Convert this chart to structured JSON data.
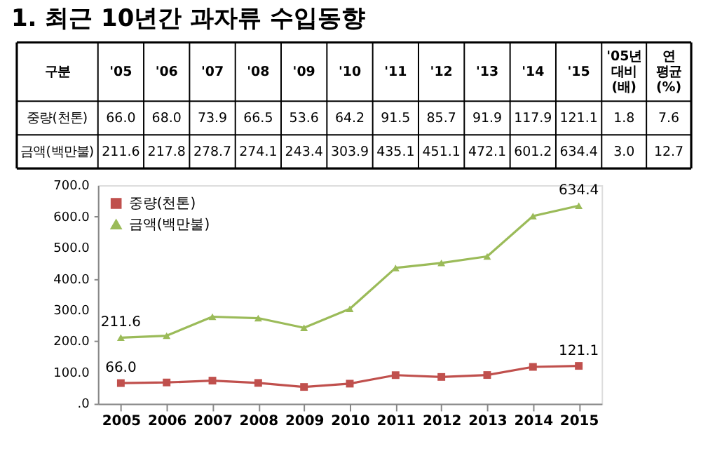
{
  "chart_data": {
    "type": "line",
    "title": "1. 최근 10년간 과자류 수입동향",
    "categories": [
      "2005",
      "2006",
      "2007",
      "2008",
      "2009",
      "2010",
      "2011",
      "2012",
      "2013",
      "2014",
      "2015"
    ],
    "series": [
      {
        "name": "중량(천톤)",
        "color": "#c0504d",
        "marker": "square",
        "values": [
          66.0,
          68.0,
          73.9,
          66.5,
          53.6,
          64.2,
          91.5,
          85.7,
          91.9,
          117.9,
          121.1
        ],
        "value_labels": [
          "66.0",
          "68.0",
          "73.9",
          "66.5",
          "53.6",
          "64.2",
          "91.5",
          "85.7",
          "91.9",
          "117.9",
          "121.1"
        ]
      },
      {
        "name": "금액(백만불)",
        "color": "#9bbb59",
        "marker": "triangle",
        "values": [
          211.6,
          217.8,
          278.7,
          274.1,
          243.4,
          303.9,
          435.1,
          451.1,
          472.1,
          601.2,
          634.4
        ],
        "value_labels": [
          "211.6",
          "217.8",
          "278.7",
          "274.1",
          "243.4",
          "303.9",
          "435.1",
          "451.1",
          "472.1",
          "601.2",
          "634.4"
        ]
      }
    ],
    "annotations": [
      "구분",
      "'05",
      "'06",
      "'07",
      "'08",
      "'09",
      "'10",
      "'11",
      "'12",
      "'13",
      "'14",
      "'15",
      "'05년 대비 (배)",
      "연 평균 (%)",
      "1.8",
      "7.6",
      "3.0",
      "12.7",
      {
        "text": "66.0",
        "x": "2005",
        "y": 66.0
      },
      {
        "text": "211.6",
        "x": "2005",
        "y": 211.6
      },
      {
        "text": "121.1",
        "x": "2015",
        "y": 121.1
      },
      {
        "text": "634.4",
        "x": "2015",
        "y": 634.4
      }
    ],
    "ylim": [
      0,
      700
    ],
    "yticks": [
      {
        "value": 0,
        "label": ".0"
      },
      {
        "value": 100,
        "label": "100.0"
      },
      {
        "value": 200,
        "label": "200.0"
      },
      {
        "value": 300,
        "label": "300.0"
      },
      {
        "value": 400,
        "label": "400.0"
      },
      {
        "value": 500,
        "label": "500.0"
      },
      {
        "value": 600,
        "label": "600.0"
      },
      {
        "value": 700,
        "label": "700.0"
      }
    ],
    "grid": false,
    "legend": "top left"
  }
}
